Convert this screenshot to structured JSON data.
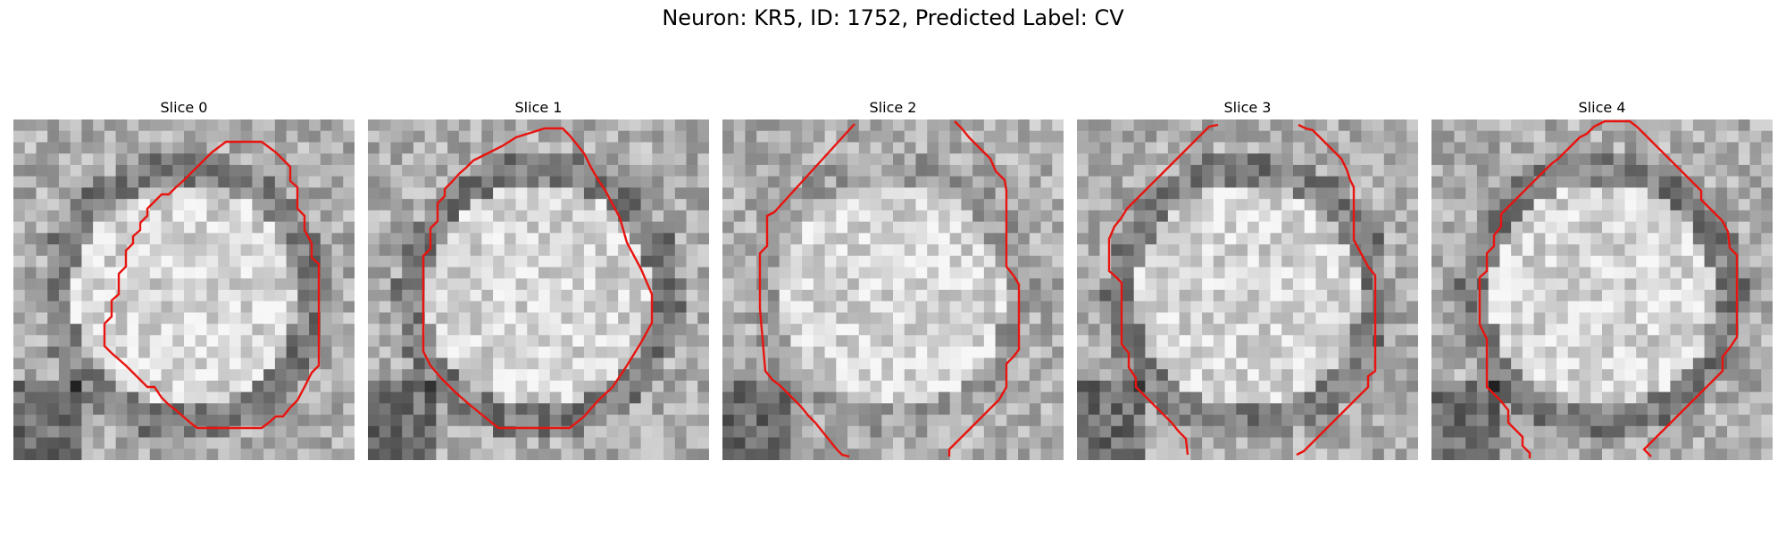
{
  "figure": {
    "title": "Neuron: KR5, ID: 1752, Predicted Label: CV"
  },
  "panels": [
    {
      "title": "Slice 0",
      "seed": 11,
      "dark_ring": true
    },
    {
      "title": "Slice 1",
      "seed": 23,
      "dark_ring": true
    },
    {
      "title": "Slice 2",
      "seed": 37,
      "dark_ring": false
    },
    {
      "title": "Slice 3",
      "seed": 53,
      "dark_ring": true
    },
    {
      "title": "Slice 4",
      "seed": 71,
      "dark_ring": true
    }
  ],
  "colors": {
    "contour": "#e8140f"
  }
}
